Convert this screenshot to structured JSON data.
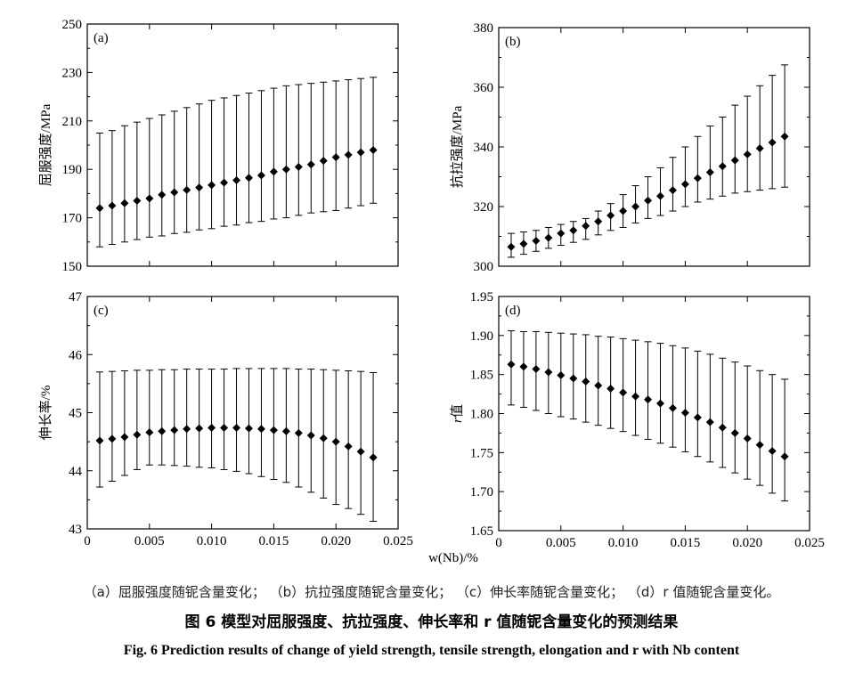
{
  "captions": {
    "sub": "（a）屈服强度随铌含量变化； （b）抗拉强度随铌含量变化； （c）伸长率随铌含量变化； （d）r 值随铌含量变化。",
    "chinese": "图 6    模型对屈服强度、抗拉强度、伸长率和 r 值随铌含量变化的预测结果",
    "english": "Fig. 6    Prediction results of change of yield strength, tensile strength, elongation and r with Nb content"
  },
  "shared_xlabel": "w(Nb)/%",
  "chart_data": [
    {
      "id": "a",
      "type": "scatter",
      "panel_label": "(a)",
      "ylabel": "屈服强度/MPa",
      "xlabel": "w(Nb)/%",
      "xlim": [
        0,
        0.025
      ],
      "ylim": [
        150,
        250
      ],
      "xticks": [],
      "xtick_labels": [],
      "yticks": [
        150,
        170,
        190,
        210,
        230,
        250
      ],
      "ytick_labels": [
        "150",
        "170",
        "190",
        "210",
        "230",
        "250"
      ],
      "x": [
        0.001,
        0.002,
        0.003,
        0.004,
        0.005,
        0.006,
        0.007,
        0.008,
        0.009,
        0.01,
        0.011,
        0.012,
        0.013,
        0.014,
        0.015,
        0.016,
        0.017,
        0.018,
        0.019,
        0.02,
        0.021,
        0.022,
        0.023
      ],
      "y": [
        174,
        175,
        176,
        177,
        178,
        179.5,
        180.5,
        181.5,
        182.5,
        183.5,
        184.5,
        185.5,
        186.5,
        187.5,
        189,
        190,
        191,
        192,
        193.5,
        195,
        196,
        197,
        198
      ],
      "err_low": [
        158,
        159,
        160,
        161,
        162,
        162.5,
        163.5,
        164,
        165,
        165.5,
        166.5,
        167,
        168,
        168.5,
        169.5,
        170,
        171,
        172,
        172.5,
        173,
        174,
        175,
        176
      ],
      "err_high": [
        205,
        206,
        208,
        209.5,
        211,
        212.5,
        214,
        215.5,
        217,
        218.5,
        219.5,
        220.5,
        221.5,
        222.5,
        223.5,
        224.5,
        225,
        225.5,
        226,
        226.5,
        227,
        227.5,
        228
      ]
    },
    {
      "id": "b",
      "type": "scatter",
      "panel_label": "(b)",
      "ylabel": "抗拉强度/MPa",
      "xlabel": "w(Nb)/%",
      "xlim": [
        0,
        0.025
      ],
      "ylim": [
        300,
        380
      ],
      "xticks": [],
      "xtick_labels": [],
      "yticks": [
        300,
        320,
        340,
        360,
        380
      ],
      "ytick_labels": [
        "300",
        "320",
        "340",
        "360",
        "380"
      ],
      "x": [
        0.001,
        0.002,
        0.003,
        0.004,
        0.005,
        0.006,
        0.007,
        0.008,
        0.009,
        0.01,
        0.011,
        0.012,
        0.013,
        0.014,
        0.015,
        0.016,
        0.017,
        0.018,
        0.019,
        0.02,
        0.021,
        0.022,
        0.023
      ],
      "y": [
        306.5,
        307.5,
        308.5,
        309.5,
        311,
        312,
        313.5,
        315,
        317,
        318.5,
        320,
        322,
        323.5,
        325.5,
        327.5,
        329.5,
        331.5,
        333.5,
        335.5,
        337.5,
        339.5,
        341.5,
        343.5
      ],
      "err_low": [
        303,
        304,
        305,
        306,
        307,
        308,
        309,
        310.5,
        312,
        313,
        314.5,
        316,
        317,
        318.5,
        320,
        321.5,
        322.5,
        323.5,
        324.5,
        325,
        325.5,
        326,
        326.5
      ],
      "err_high": [
        311,
        311.5,
        312,
        313,
        314,
        315,
        316,
        318.5,
        321,
        324,
        327,
        330,
        333,
        336.5,
        340,
        343.5,
        347,
        350,
        354,
        357,
        360.5,
        364,
        367.5
      ]
    },
    {
      "id": "c",
      "type": "scatter",
      "panel_label": "(c)",
      "ylabel": "伸长率/%",
      "xlabel": "w(Nb)/%",
      "xlim": [
        0,
        0.025
      ],
      "ylim": [
        43,
        47
      ],
      "xticks": [
        0,
        0.005,
        0.01,
        0.015,
        0.02,
        0.025
      ],
      "xtick_labels": [
        "0",
        "0.005",
        "0.010",
        "0.015",
        "0.020",
        "0.025"
      ],
      "yticks": [
        43,
        44,
        45,
        46,
        47
      ],
      "ytick_labels": [
        "43",
        "44",
        "45",
        "46",
        "47"
      ],
      "x": [
        0.001,
        0.002,
        0.003,
        0.004,
        0.005,
        0.006,
        0.007,
        0.008,
        0.009,
        0.01,
        0.011,
        0.012,
        0.013,
        0.014,
        0.015,
        0.016,
        0.017,
        0.018,
        0.019,
        0.02,
        0.021,
        0.022,
        0.023
      ],
      "y": [
        44.52,
        44.55,
        44.58,
        44.62,
        44.66,
        44.68,
        44.7,
        44.72,
        44.73,
        44.74,
        44.74,
        44.74,
        44.73,
        44.72,
        44.7,
        44.68,
        44.65,
        44.61,
        44.56,
        44.5,
        44.42,
        44.33,
        44.23
      ],
      "err_low": [
        43.72,
        43.82,
        43.92,
        44.02,
        44.1,
        44.1,
        44.09,
        44.08,
        44.06,
        44.05,
        44.02,
        43.99,
        43.95,
        43.9,
        43.85,
        43.8,
        43.72,
        43.63,
        43.53,
        43.42,
        43.35,
        43.25,
        43.13
      ],
      "err_high": [
        45.7,
        45.71,
        45.72,
        45.73,
        45.73,
        45.74,
        45.74,
        45.75,
        45.75,
        45.75,
        45.75,
        45.76,
        45.76,
        45.76,
        45.76,
        45.76,
        45.75,
        45.75,
        45.74,
        45.73,
        45.72,
        45.71,
        45.69
      ]
    },
    {
      "id": "d",
      "type": "scatter",
      "panel_label": "(d)",
      "ylabel": "r值",
      "xlabel": "w(Nb)/%",
      "xlim": [
        0,
        0.025
      ],
      "ylim": [
        1.65,
        1.95
      ],
      "xticks": [
        0,
        0.005,
        0.01,
        0.015,
        0.02,
        0.025
      ],
      "xtick_labels": [
        "0",
        "0.005",
        "0.010",
        "0.015",
        "0.020",
        "0.025"
      ],
      "yticks": [
        1.65,
        1.7,
        1.75,
        1.8,
        1.85,
        1.9,
        1.95
      ],
      "ytick_labels": [
        "1.65",
        "1.70",
        "1.75",
        "1.80",
        "1.85",
        "1.90",
        "1.95"
      ],
      "x": [
        0.001,
        0.002,
        0.003,
        0.004,
        0.005,
        0.006,
        0.007,
        0.008,
        0.009,
        0.01,
        0.011,
        0.012,
        0.013,
        0.014,
        0.015,
        0.016,
        0.017,
        0.018,
        0.019,
        0.02,
        0.021,
        0.022,
        0.023
      ],
      "y": [
        1.863,
        1.86,
        1.857,
        1.853,
        1.849,
        1.845,
        1.841,
        1.836,
        1.832,
        1.827,
        1.822,
        1.818,
        1.813,
        1.807,
        1.801,
        1.795,
        1.789,
        1.782,
        1.775,
        1.768,
        1.76,
        1.752,
        1.745
      ],
      "err_low": [
        1.811,
        1.808,
        1.804,
        1.8,
        1.796,
        1.793,
        1.789,
        1.785,
        1.781,
        1.777,
        1.772,
        1.767,
        1.762,
        1.757,
        1.751,
        1.745,
        1.738,
        1.731,
        1.724,
        1.716,
        1.708,
        1.698,
        1.688
      ],
      "err_high": [
        1.906,
        1.905,
        1.905,
        1.904,
        1.903,
        1.902,
        1.901,
        1.899,
        1.898,
        1.896,
        1.894,
        1.892,
        1.89,
        1.887,
        1.884,
        1.88,
        1.876,
        1.871,
        1.866,
        1.861,
        1.855,
        1.85,
        1.844
      ]
    }
  ]
}
